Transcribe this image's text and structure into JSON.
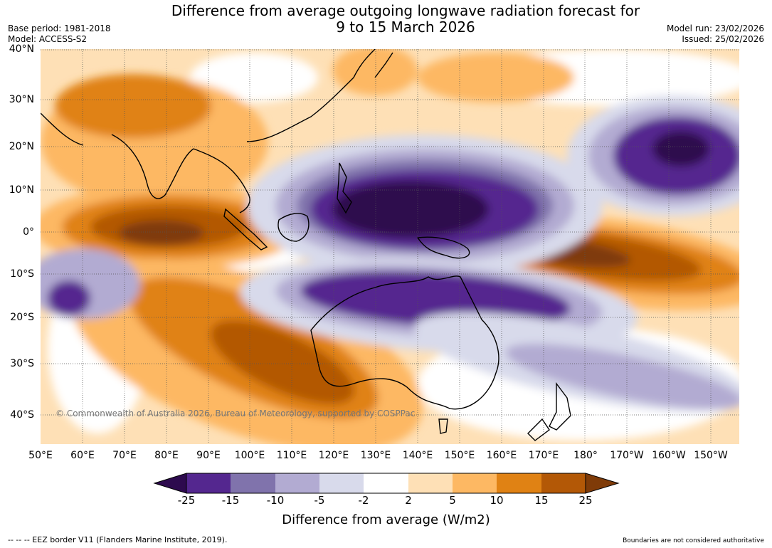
{
  "header": {
    "title_line1": "Difference from average outgoing longwave radiation forecast for",
    "title_line2": "9 to 15 March 2026",
    "base_period": "Base period: 1981-2018",
    "model": "Model: ACCESS-S2",
    "model_run": "Model run: 23/02/2026",
    "issued": "Issued: 25/02/2026"
  },
  "map": {
    "latitude_labels": [
      "40°N",
      "30°N",
      "20°N",
      "10°N",
      "0°",
      "10°S",
      "20°S",
      "30°S",
      "40°S"
    ],
    "longitude_labels": [
      "50°E",
      "60°E",
      "70°E",
      "80°E",
      "90°E",
      "100°E",
      "110°E",
      "120°E",
      "130°E",
      "140°E",
      "150°E",
      "160°E",
      "170°E",
      "180°",
      "170°W",
      "160°W",
      "150°W"
    ],
    "copyright": "© Commonwealth of Australia 2026, Bureau of Meteorology, supported by COSPPac",
    "colors": {
      "lt_neg25": "#2d0a4e",
      "neg25_neg15": "#54278f",
      "neg15_neg10": "#8073ac",
      "neg10_neg5": "#b2abd2",
      "neg5_neg2": "#d8daeb",
      "neg2_2": "#ffffff",
      "pos2_5": "#fee0b6",
      "pos5_10": "#fdb863",
      "pos10_15": "#e08214",
      "pos15_25": "#b35806",
      "gt25": "#7f3b08"
    }
  },
  "colorbar": {
    "ticks": [
      "-25",
      "-15",
      "-10",
      "-5",
      "-2",
      "2",
      "5",
      "10",
      "15",
      "25"
    ],
    "title": "Difference from average (W/m2)"
  },
  "footer": {
    "eez_note": "--  --  -- EEZ border V11 (Flanders Marine Institute, 2019).",
    "disclaimer": "Boundaries are not considered authoritative"
  }
}
